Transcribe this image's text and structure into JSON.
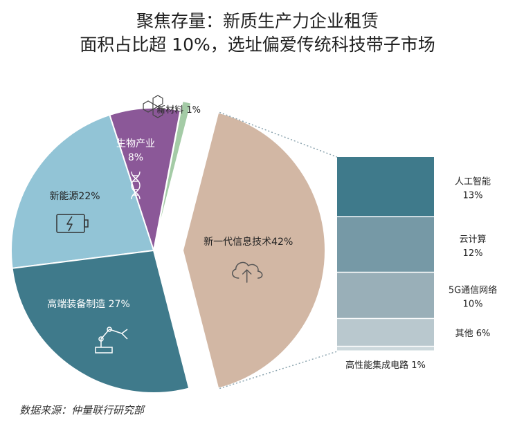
{
  "title_line1": "聚焦存量：新质生产力企业租赁",
  "title_line2": "面积占比超 10%，选址偏爱传统科技带子市场",
  "source": "数据来源：仲量联行研究部",
  "chart_data": [
    {
      "type": "pie",
      "slices": [
        {
          "name": "新一代信息技术",
          "value": 42,
          "label": "新一代信息技术42%",
          "color": "#d2b7a4",
          "icon": "cloud-upload-icon"
        },
        {
          "name": "新材料",
          "value": 1,
          "label": "新材料 1%",
          "color": "#a4cba6",
          "icon": "molecule-icon"
        },
        {
          "name": "生物产业",
          "value": 8,
          "label_line1": "生物产业",
          "label_line2": "8%",
          "color": "#8b5898",
          "icon": "dna-icon"
        },
        {
          "name": "新能源",
          "value": 22,
          "label": "新能源22%",
          "color": "#92c4d6",
          "icon": "battery-icon"
        },
        {
          "name": "高端装备制造",
          "value": 27,
          "label": "高端装备制造 27%",
          "color": "#3f7a8b",
          "icon": "robot-arm-icon"
        }
      ]
    },
    {
      "type": "bar",
      "stacked": true,
      "parent": "新一代信息技术",
      "segments": [
        {
          "name": "人工智能",
          "value": 13,
          "label_line1": "人工智能",
          "label_line2": "13%",
          "color": "#3f7a8b"
        },
        {
          "name": "云计算",
          "value": 12,
          "label_line1": "云计算",
          "label_line2": "12%",
          "color": "#7699a6"
        },
        {
          "name": "5G通信网络",
          "value": 10,
          "label_line1": "5G通信网络",
          "label_line2": "10%",
          "color": "#99afb8"
        },
        {
          "name": "其他",
          "value": 6,
          "label_line1": "其他 6%",
          "color": "#b9c8ce"
        },
        {
          "name": "高性能集成电路",
          "value": 1,
          "label_line1": "高性能集成电路 1%",
          "color": "#ccd8dc"
        }
      ]
    }
  ]
}
